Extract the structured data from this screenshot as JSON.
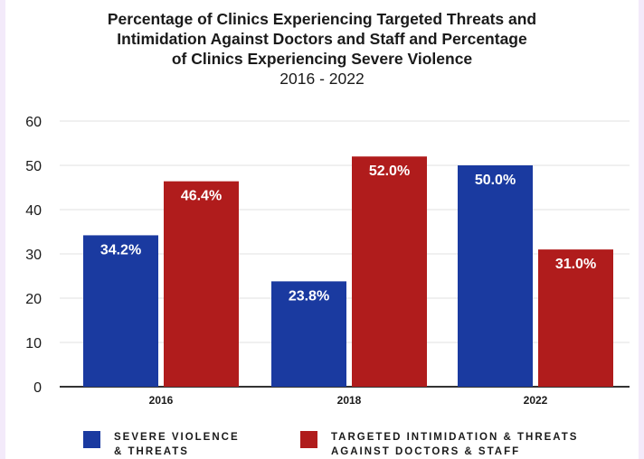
{
  "chart_data": {
    "type": "bar",
    "title": "Percentage of Clinics Experiencing Targeted Threats and Intimidation Against Doctors and Staff and Percentage of Clinics Experiencing Severe Violence",
    "title_lines": [
      "Percentage of Clinics Experiencing Targeted Threats and",
      "Intimidation Against Doctors and Staff and Percentage",
      "of Clinics Experiencing Severe Violence"
    ],
    "subtitle": "2016 - 2022",
    "categories": [
      "2016",
      "2018",
      "2022"
    ],
    "series": [
      {
        "name": "SEVERE VIOLENCE & THREATS",
        "name_lines": [
          "SEVERE VIOLENCE",
          "& THREATS"
        ],
        "color": "#1a3aa0",
        "values": [
          34.2,
          23.8,
          50.0
        ],
        "labels": [
          "34.2%",
          "23.8%",
          "50.0%"
        ]
      },
      {
        "name": "TARGETED INTIMIDATION & THREATS AGAINST DOCTORS & STAFF",
        "name_lines": [
          "TARGETED INTIMIDATION & THREATS",
          "AGAINST DOCTORS & STAFF"
        ],
        "color": "#b01c1c",
        "values": [
          46.4,
          52.0,
          31.0
        ],
        "labels": [
          "46.4%",
          "52.0%",
          "31.0%"
        ]
      }
    ],
    "xlabel": "",
    "ylabel": "",
    "ylim": [
      0,
      60
    ],
    "yticks": [
      "0",
      "10",
      "20",
      "30",
      "40",
      "50",
      "60"
    ],
    "grid": true,
    "legend": "bottom"
  }
}
